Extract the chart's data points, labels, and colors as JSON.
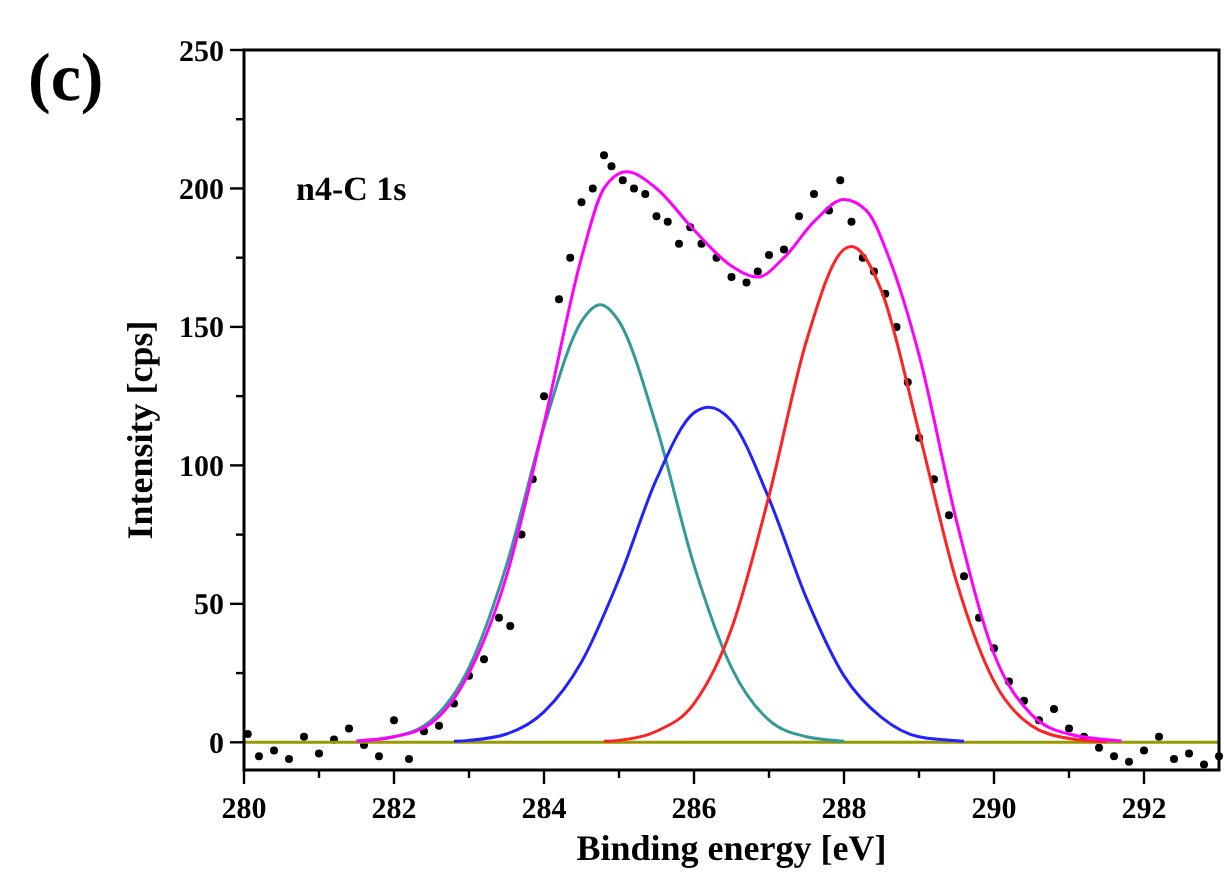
{
  "chart_data": {
    "type": "line",
    "title": "(c)",
    "xlabel": "Binding energy [eV]",
    "ylabel": "Intensity [cps]",
    "annotations": [
      "n4-C 1s"
    ],
    "xlim": [
      280,
      293
    ],
    "xticks": [
      280,
      {
        "value": 281,
        "label": null
      },
      282,
      {
        "value": 283,
        "label": null
      },
      284,
      {
        "value": 285,
        "label": null
      },
      286,
      {
        "value": 287,
        "label": null
      },
      288,
      {
        "value": 289,
        "label": null
      },
      290,
      {
        "value": 291,
        "label": null
      },
      292
    ],
    "ylim": [
      -10,
      250
    ],
    "yticks": [
      0,
      {
        "value": 25,
        "label": null
      },
      50,
      {
        "value": 75,
        "label": null
      },
      100,
      {
        "value": 125,
        "label": null
      },
      150,
      {
        "value": 175,
        "label": null
      },
      200,
      {
        "value": 225,
        "label": null
      },
      250
    ],
    "grid": false,
    "marker": "none",
    "line_style": "solid",
    "series": [
      {
        "type": "scatter",
        "marker": "circle",
        "color": "#000000",
        "x": [
          280.05,
          280.2,
          280.4,
          280.6,
          280.8,
          281.0,
          281.2,
          281.4,
          281.6,
          281.8,
          282.0,
          282.2,
          282.4,
          282.6,
          282.8,
          283.0,
          283.2,
          283.4,
          283.55,
          283.7,
          283.85,
          284.0,
          284.2,
          284.35,
          284.5,
          284.65,
          284.8,
          284.9,
          285.05,
          285.2,
          285.35,
          285.5,
          285.65,
          285.8,
          285.95,
          286.1,
          286.3,
          286.5,
          286.7,
          286.85,
          287.0,
          287.2,
          287.4,
          287.6,
          287.8,
          287.95,
          288.1,
          288.25,
          288.4,
          288.55,
          288.7,
          288.85,
          289.0,
          289.2,
          289.4,
          289.6,
          289.8,
          290.0,
          290.2,
          290.4,
          290.6,
          290.8,
          291.0,
          291.2,
          291.4,
          291.6,
          291.8,
          292.0,
          292.2,
          292.4,
          292.6,
          292.8,
          293.0
        ],
        "values": [
          3,
          -5,
          -3,
          -6,
          2,
          -4,
          1,
          5,
          -1,
          -5,
          8,
          -6,
          4,
          6,
          14,
          24,
          30,
          45,
          42,
          75,
          95,
          125,
          160,
          175,
          195,
          200,
          212,
          208,
          203,
          200,
          198,
          190,
          188,
          180,
          186,
          180,
          175,
          168,
          166,
          170,
          176,
          178,
          190,
          198,
          192,
          203,
          188,
          175,
          170,
          162,
          150,
          130,
          110,
          95,
          82,
          60,
          45,
          34,
          22,
          15,
          8,
          12,
          5,
          2,
          -2,
          -5,
          -7,
          -3,
          2,
          -6,
          -4,
          -8,
          -5
        ]
      },
      {
        "color": "#999900",
        "x": [
          280,
          293
        ],
        "values": [
          0,
          0
        ]
      },
      {
        "color": "#339999",
        "x": [
          281.5,
          282,
          282.5,
          283,
          283.5,
          284,
          284.5,
          284.75,
          285,
          285.5,
          286,
          286.5,
          287,
          287.5,
          288
        ],
        "values": [
          0.4,
          2,
          8,
          27,
          64,
          114,
          152,
          158,
          152,
          114,
          64,
          27,
          8,
          2,
          0.4
        ]
      },
      {
        "color": "#2222ff",
        "x": [
          282.8,
          283,
          283.5,
          284,
          284.5,
          285,
          285.5,
          286,
          286.2,
          286.5,
          287,
          287.5,
          288,
          288.5,
          289,
          289.6
        ],
        "values": [
          0.4,
          0.7,
          3,
          11,
          29,
          59,
          95,
          119,
          121,
          116,
          88,
          52,
          24,
          9,
          2,
          0.4
        ]
      },
      {
        "color": "#ff2222",
        "x": [
          284.8,
          285,
          285.5,
          286,
          286.5,
          287,
          287.5,
          288,
          288.1,
          288.5,
          289,
          289.5,
          290,
          290.5,
          291,
          291.5
        ],
        "values": [
          0.4,
          0.7,
          4,
          14,
          41,
          89,
          145,
          178,
          179,
          163,
          112,
          58,
          22,
          6,
          1.4,
          0.2
        ]
      },
      {
        "color": "#ff00ff",
        "x": [
          281.5,
          282,
          282.5,
          283,
          283.5,
          284,
          284.5,
          284.8,
          285.1,
          285.5,
          286,
          286.5,
          286.85,
          287.2,
          287.6,
          288,
          288.3,
          288.6,
          289,
          289.5,
          290,
          290.5,
          291,
          291.7
        ],
        "values": [
          0.5,
          2,
          7,
          25,
          60,
          115,
          175,
          200,
          206,
          200,
          185,
          172,
          168,
          175,
          188,
          196,
          192,
          175,
          140,
          80,
          32,
          10,
          3,
          0.5
        ]
      }
    ]
  }
}
